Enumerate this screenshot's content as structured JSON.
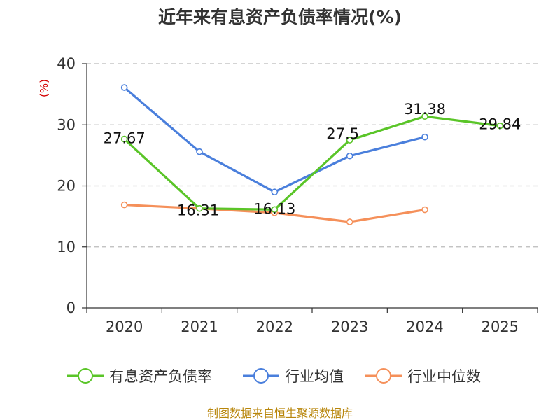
{
  "chart_data": {
    "type": "line",
    "title": "近年来有息资产负债率情况(%)",
    "unit": "(%)",
    "categories": [
      "2020",
      "2021",
      "2022",
      "2023",
      "2024",
      "2025"
    ],
    "ylim": [
      0,
      40
    ],
    "yticks": [
      0,
      10,
      20,
      30,
      40
    ],
    "grid": true,
    "legend_position": "bottom",
    "series": [
      {
        "name": "有息资产负债率",
        "color": "#5ac528",
        "values": [
          27.67,
          16.31,
          16.13,
          27.5,
          31.38,
          29.84
        ],
        "labels": [
          "27.67",
          "16.31",
          "16.13",
          "27.5",
          "31.38",
          "29.84"
        ]
      },
      {
        "name": "行业均值",
        "color": "#4a7fdc",
        "values": [
          36.1,
          25.6,
          19.0,
          24.9,
          28.0,
          null
        ],
        "labels": []
      },
      {
        "name": "行业中位数",
        "color": "#f5905a",
        "values": [
          16.9,
          16.3,
          15.6,
          14.1,
          16.1,
          null
        ],
        "labels": []
      }
    ]
  },
  "source": "制图数据来自恒生聚源数据库"
}
